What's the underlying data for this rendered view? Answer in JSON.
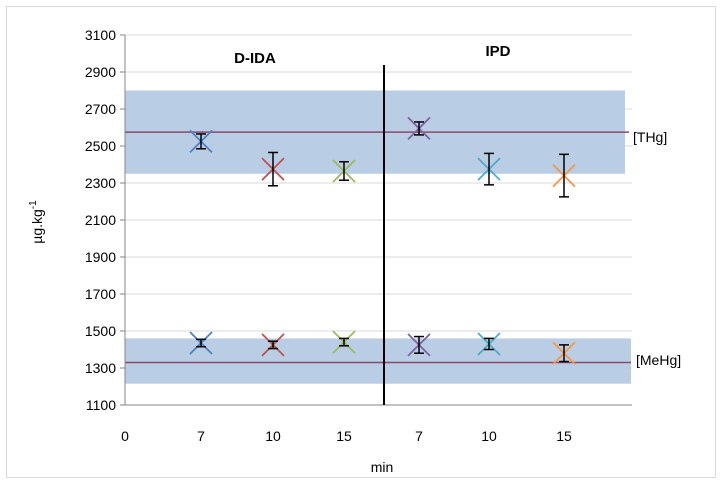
{
  "chart_data": {
    "type": "scatter",
    "title": "",
    "xlabel": "min",
    "ylabel": "µg.kg",
    "ylabel_superscript": "-1",
    "ylim": [
      1100,
      3100
    ],
    "yticks": [
      "3100",
      "2900",
      "2700",
      "2500",
      "2300",
      "2100",
      "1900",
      "1700",
      "1500",
      "1300",
      "1100"
    ],
    "xticks": [
      "0",
      "7",
      "10",
      "15",
      "7",
      "10",
      "15"
    ],
    "grid": true,
    "groups": [
      {
        "label": "D-IDA"
      },
      {
        "label": "IPD"
      }
    ],
    "bands": [
      {
        "name": "THg",
        "label": "[THg]",
        "low": 2350,
        "high": 2800,
        "reference": 2575
      },
      {
        "name": "MeHg",
        "label": "[MeHg]",
        "low": 1215,
        "high": 1460,
        "reference": 1330
      }
    ],
    "points": [
      {
        "group": "D-IDA",
        "time": "7",
        "analyte": "THg",
        "value": 2525,
        "error": 40,
        "color": "#4f81bd"
      },
      {
        "group": "D-IDA",
        "time": "10",
        "analyte": "THg",
        "value": 2375,
        "error": 90,
        "color": "#c0504d"
      },
      {
        "group": "D-IDA",
        "time": "15",
        "analyte": "THg",
        "value": 2365,
        "error": 50,
        "color": "#9bbb59"
      },
      {
        "group": "IPD",
        "time": "7",
        "analyte": "THg",
        "value": 2595,
        "error": 35,
        "color": "#8064a2"
      },
      {
        "group": "IPD",
        "time": "10",
        "analyte": "THg",
        "value": 2375,
        "error": 85,
        "color": "#4bacc6"
      },
      {
        "group": "IPD",
        "time": "15",
        "analyte": "THg",
        "value": 2340,
        "error": 115,
        "color": "#f79646"
      },
      {
        "group": "D-IDA",
        "time": "7",
        "analyte": "MeHg",
        "value": 1435,
        "error": 20,
        "color": "#4f81bd"
      },
      {
        "group": "D-IDA",
        "time": "10",
        "analyte": "MeHg",
        "value": 1425,
        "error": 20,
        "color": "#c0504d"
      },
      {
        "group": "D-IDA",
        "time": "15",
        "analyte": "MeHg",
        "value": 1440,
        "error": 20,
        "color": "#9bbb59"
      },
      {
        "group": "IPD",
        "time": "7",
        "analyte": "MeHg",
        "value": 1425,
        "error": 45,
        "color": "#8064a2"
      },
      {
        "group": "IPD",
        "time": "10",
        "analyte": "MeHg",
        "value": 1430,
        "error": 30,
        "color": "#4bacc6"
      },
      {
        "group": "IPD",
        "time": "15",
        "analyte": "MeHg",
        "value": 1380,
        "error": 45,
        "color": "#f79646"
      }
    ],
    "colors": {
      "band": "#b9cde5",
      "reference_line": "#8b4a6b",
      "gridline": "#d9d9d9",
      "divider": "#000000"
    }
  }
}
